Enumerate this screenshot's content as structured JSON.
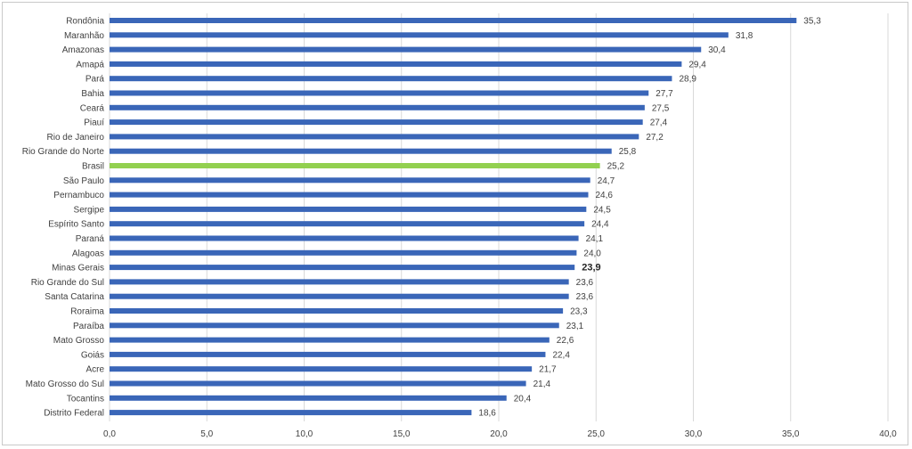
{
  "chart_data": {
    "type": "bar",
    "orientation": "horizontal",
    "title": "",
    "xlabel": "",
    "ylabel": "",
    "xlim": [
      0,
      40
    ],
    "x_ticks": [
      0,
      5,
      10,
      15,
      20,
      25,
      30,
      35,
      40
    ],
    "x_tick_labels": [
      "0,0",
      "5,0",
      "10,0",
      "15,0",
      "20,0",
      "25,0",
      "30,0",
      "35,0",
      "40,0"
    ],
    "grid": true,
    "legend": "none",
    "colors": {
      "default_bar": "#3a66b8",
      "highlight_bar": "#92d050"
    },
    "categories": [
      "Rondônia",
      "Maranhão",
      "Amazonas",
      "Amapá",
      "Pará",
      "Bahia",
      "Ceará",
      "Piauí",
      "Rio de Janeiro",
      "Rio Grande do Norte",
      "Brasil",
      "São Paulo",
      "Pernambuco",
      "Sergipe",
      "Espírito Santo",
      "Paraná",
      "Alagoas",
      "Minas Gerais",
      "Rio Grande do Sul",
      "Santa Catarina",
      "Roraima",
      "Paraíba",
      "Mato Grosso",
      "Goiás",
      "Acre",
      "Mato Grosso do Sul",
      "Tocantins",
      "Distrito Federal"
    ],
    "values": [
      35.3,
      31.8,
      30.4,
      29.4,
      28.9,
      27.7,
      27.5,
      27.4,
      27.2,
      25.8,
      25.2,
      24.7,
      24.6,
      24.5,
      24.4,
      24.1,
      24.0,
      23.9,
      23.6,
      23.6,
      23.3,
      23.1,
      22.6,
      22.4,
      21.7,
      21.4,
      20.4,
      18.6
    ],
    "value_labels": [
      "35,3",
      "31,8",
      "30,4",
      "29,4",
      "28,9",
      "27,7",
      "27,5",
      "27,4",
      "27,2",
      "25,8",
      "25,2",
      "24,7",
      "24,6",
      "24,5",
      "24,4",
      "24,1",
      "24,0",
      "23,9",
      "23,6",
      "23,6",
      "23,3",
      "23,1",
      "22,6",
      "22,4",
      "21,7",
      "21,4",
      "20,4",
      "18,6"
    ],
    "highlight_categories": [
      "Brasil"
    ],
    "bold_value_categories": [
      "Minas Gerais"
    ]
  }
}
